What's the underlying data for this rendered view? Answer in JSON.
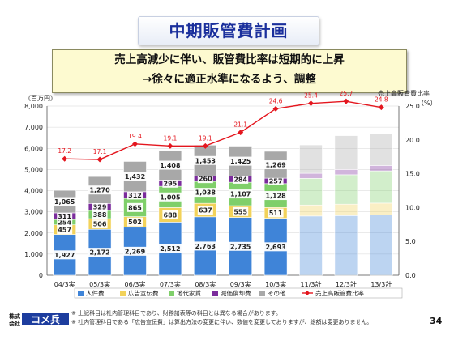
{
  "title": "中期販管費計画",
  "headline": {
    "line1": "売上高減少に伴い、販管費比率は短期的に上昇",
    "line2": "→徐々に適正水準になるよう、調整"
  },
  "colors": {
    "jinken": "#3f84d8",
    "koukoku": "#f2d25a",
    "chidai": "#7fcf6a",
    "genka": "#7b2c9c",
    "sonota": "#a8a8a8",
    "ratio": "#e4161e"
  },
  "chart_data": {
    "type": "bar",
    "subtype": "stacked-bar-with-line",
    "categories": [
      "04/3実",
      "05/3実",
      "06/3実",
      "07/3実",
      "08/3実",
      "09/3実",
      "10/3実",
      "11/3計",
      "12/3計",
      "13/3計"
    ],
    "planned_from_index": 7,
    "y_left_unit": "（百万円）",
    "y_right_label": "売上高販管費比率",
    "y_right_unit": "（%）",
    "ylim_left": [
      0,
      8000
    ],
    "ylim_right": [
      0,
      25
    ],
    "y_left_ticks": [
      "0",
      "1,000",
      "2,000",
      "3,000",
      "4,000",
      "5,000",
      "6,000",
      "7,000",
      "8,000"
    ],
    "y_right_ticks": [
      "0.0",
      "5.0",
      "10.0",
      "15.0",
      "20.0",
      "25.0"
    ],
    "series": [
      {
        "name": "人件費",
        "color_key": "jinken",
        "values": [
          1927,
          2172,
          2269,
          2512,
          2763,
          2735,
          2693,
          2800,
          2820,
          2850
        ],
        "labels": [
          "1,927",
          "2,172",
          "2,269",
          "2,512",
          "2,763",
          "2,735",
          "2,693",
          "",
          "",
          ""
        ]
      },
      {
        "name": "広告宣伝費",
        "color_key": "koukoku",
        "values": [
          457,
          506,
          502,
          688,
          637,
          555,
          511,
          520,
          540,
          560
        ],
        "labels": [
          "457",
          "506",
          "502",
          "688",
          "637",
          "555",
          "511",
          "",
          "",
          ""
        ]
      },
      {
        "name": "地代家賃",
        "color_key": "chidai",
        "values": [
          254,
          388,
          865,
          1005,
          1038,
          1107,
          1128,
          1260,
          1390,
          1520
        ],
        "labels": [
          "254",
          "388",
          "865",
          "1,005",
          "1,038",
          "1,107",
          "1,128",
          "",
          "",
          ""
        ]
      },
      {
        "name": "減価償却費",
        "color_key": "genka",
        "values": [
          311,
          329,
          312,
          295,
          260,
          284,
          257,
          240,
          250,
          260
        ],
        "labels": [
          "311",
          "329",
          "312",
          "295",
          "260",
          "284",
          "257",
          "",
          "",
          ""
        ]
      },
      {
        "name": "その他",
        "color_key": "sonota",
        "values": [
          1065,
          1270,
          1432,
          1408,
          1453,
          1425,
          1269,
          1340,
          1600,
          1500
        ],
        "labels": [
          "1,065",
          "1,270",
          "1,432",
          "1,408",
          "1,453",
          "1,425",
          "1,269",
          "",
          "",
          ""
        ]
      }
    ],
    "ratio": {
      "name": "売上高販管費比率",
      "values": [
        17.2,
        17.1,
        19.4,
        19.1,
        19.1,
        21.1,
        24.6,
        25.4,
        25.7,
        24.8
      ],
      "labels": [
        "17.2",
        "17.1",
        "19.4",
        "19.1",
        "19.1",
        "21.1",
        "24.6",
        "25.4",
        "25.7",
        "24.8"
      ]
    }
  },
  "footer": {
    "logo_label": "株式会社コメ兵",
    "note1": "※  上記科目は社内管理科目であり、財務諸表等の科目とは異なる場合があります。",
    "note2": "※  社内管理科目である「広告宣伝費」は算出方法の変更に伴い、数値を変更しておりますが、総額は変更ありません。",
    "page": "34"
  }
}
